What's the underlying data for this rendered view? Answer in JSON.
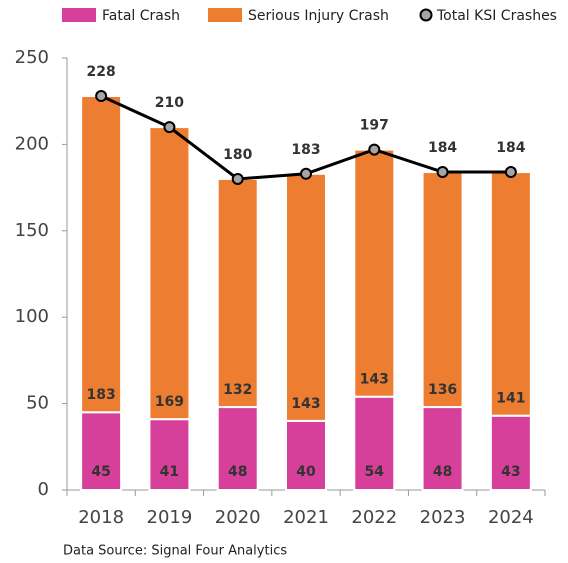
{
  "chart_data": {
    "type": "bar",
    "stacked": true,
    "categories": [
      "2018",
      "2019",
      "2020",
      "2021",
      "2022",
      "2023",
      "2024"
    ],
    "series": [
      {
        "name": "Fatal Crash",
        "color": "#d6409b",
        "values": [
          45,
          41,
          48,
          40,
          54,
          48,
          43
        ]
      },
      {
        "name": "Serious Injury Crash",
        "color": "#ed7d31",
        "values": [
          183,
          169,
          132,
          143,
          143,
          136,
          141
        ]
      },
      {
        "name": "Total KSI Crashes",
        "type": "line",
        "color": "#000000",
        "marker_color": "#a6a6a6",
        "values": [
          228,
          210,
          180,
          183,
          197,
          184,
          184
        ]
      }
    ],
    "ylim": [
      0,
      250
    ],
    "yticks": [
      0,
      50,
      100,
      150,
      200,
      250
    ],
    "grid": false,
    "legend": "top",
    "source": "Data Source: Signal Four Analytics"
  }
}
